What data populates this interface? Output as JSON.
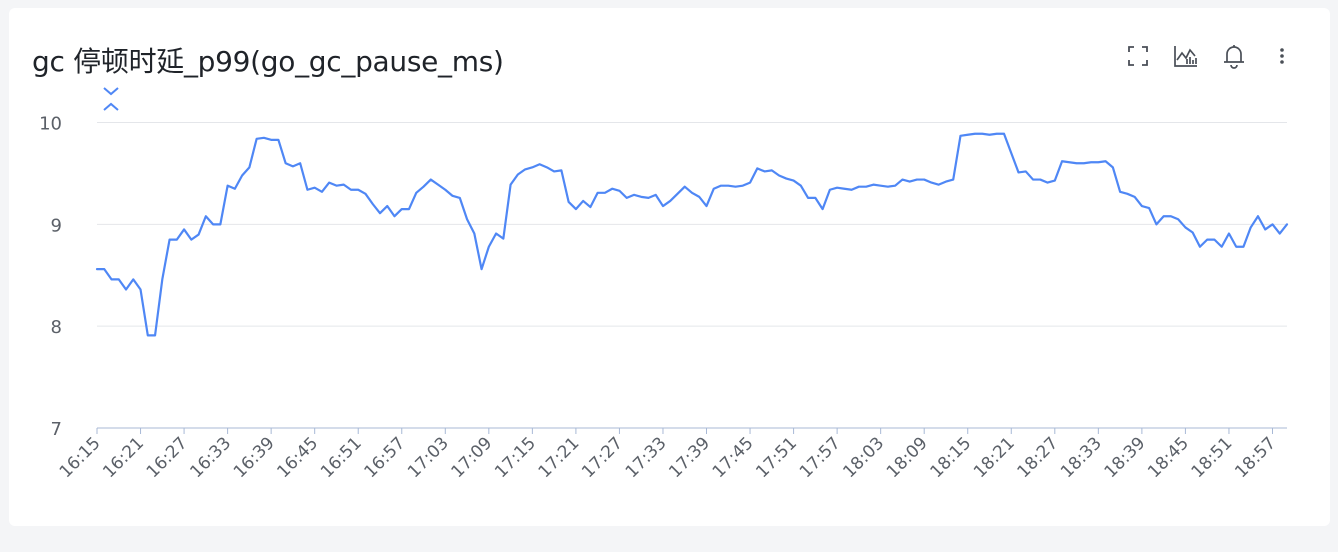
{
  "panel": {
    "title": "gc 停顿时延_p99(go_gc_pause_ms)",
    "toolbar": [
      {
        "name": "fullscreen-icon"
      },
      {
        "name": "chart-type-icon"
      },
      {
        "name": "alert-bell-icon"
      },
      {
        "name": "more-menu-icon"
      }
    ]
  },
  "colors": {
    "line": "#4f87f5",
    "grid": "#e4e6ea",
    "axis": "#a8b9d6"
  },
  "chart_data": {
    "type": "line",
    "title": "",
    "xlabel": "",
    "ylabel": "",
    "ylim": [
      7,
      10.3
    ],
    "yticks": [
      "7",
      "8",
      "9",
      "10"
    ],
    "grid": true,
    "legend": "none",
    "x_tick_labels": [
      "16:15",
      "16:21",
      "16:27",
      "16:33",
      "16:39",
      "16:45",
      "16:51",
      "16:57",
      "17:03",
      "17:09",
      "17:15",
      "17:21",
      "17:27",
      "17:33",
      "17:39",
      "17:45",
      "17:51",
      "17:57",
      "18:03",
      "18:09",
      "18:15",
      "18:21",
      "18:27",
      "18:33",
      "18:39",
      "18:45",
      "18:51",
      "18:57"
    ],
    "x": [
      "16:15",
      "16:16",
      "16:17",
      "16:18",
      "16:19",
      "16:20",
      "16:21",
      "16:22",
      "16:23",
      "16:24",
      "16:25",
      "16:26",
      "16:27",
      "16:28",
      "16:29",
      "16:30",
      "16:31",
      "16:32",
      "16:33",
      "16:34",
      "16:35",
      "16:36",
      "16:37",
      "16:38",
      "16:39",
      "16:40",
      "16:41",
      "16:42",
      "16:43",
      "16:44",
      "16:45",
      "16:46",
      "16:47",
      "16:48",
      "16:49",
      "16:50",
      "16:51",
      "16:52",
      "16:53",
      "16:54",
      "16:55",
      "16:56",
      "16:57",
      "16:58",
      "16:59",
      "17:00",
      "17:01",
      "17:02",
      "17:03",
      "17:04",
      "17:05",
      "17:06",
      "17:07",
      "17:08",
      "17:09",
      "17:10",
      "17:11",
      "17:12",
      "17:13",
      "17:14",
      "17:15",
      "17:16",
      "17:17",
      "17:18",
      "17:19",
      "17:20",
      "17:21",
      "17:22",
      "17:23",
      "17:24",
      "17:25",
      "17:26",
      "17:27",
      "17:28",
      "17:29",
      "17:30",
      "17:31",
      "17:32",
      "17:33",
      "17:34",
      "17:35",
      "17:36",
      "17:37",
      "17:38",
      "17:39",
      "17:40",
      "17:41",
      "17:42",
      "17:43",
      "17:44",
      "17:45",
      "17:46",
      "17:47",
      "17:48",
      "17:49",
      "17:50",
      "17:51",
      "17:52",
      "17:53",
      "17:54",
      "17:55",
      "17:56",
      "17:57",
      "17:58",
      "17:59",
      "18:00",
      "18:01",
      "18:02",
      "18:03",
      "18:04",
      "18:05",
      "18:06",
      "18:07",
      "18:08",
      "18:09",
      "18:10",
      "18:11",
      "18:12",
      "18:13",
      "18:14",
      "18:15",
      "18:16",
      "18:17",
      "18:18",
      "18:19",
      "18:20",
      "18:21",
      "18:22",
      "18:23",
      "18:24",
      "18:25",
      "18:26",
      "18:27",
      "18:28",
      "18:29",
      "18:30",
      "18:31",
      "18:32",
      "18:33",
      "18:34",
      "18:35",
      "18:36",
      "18:37",
      "18:38",
      "18:39",
      "18:40",
      "18:41",
      "18:42",
      "18:43",
      "18:44",
      "18:45",
      "18:46",
      "18:47",
      "18:48",
      "18:49",
      "18:50",
      "18:51",
      "18:52",
      "18:53",
      "18:54",
      "18:55",
      "18:56",
      "18:57",
      "18:58",
      "18:59"
    ],
    "series": [
      {
        "values": [
          8.56,
          8.56,
          8.46,
          8.46,
          8.36,
          8.46,
          8.36,
          7.91,
          7.91,
          8.46,
          8.85,
          8.85,
          8.95,
          8.85,
          8.9,
          9.08,
          9.0,
          9.0,
          9.38,
          9.35,
          9.48,
          9.56,
          9.84,
          9.85,
          9.83,
          9.83,
          9.6,
          9.57,
          9.6,
          9.34,
          9.36,
          9.32,
          9.41,
          9.38,
          9.39,
          9.34,
          9.34,
          9.3,
          9.2,
          9.11,
          9.18,
          9.08,
          9.15,
          9.15,
          9.31,
          9.37,
          9.44,
          9.39,
          9.34,
          9.28,
          9.26,
          9.05,
          8.91,
          8.56,
          8.78,
          8.91,
          8.86,
          9.39,
          9.49,
          9.54,
          9.56,
          9.59,
          9.56,
          9.52,
          9.53,
          9.22,
          9.15,
          9.23,
          9.17,
          9.31,
          9.31,
          9.35,
          9.33,
          9.26,
          9.29,
          9.27,
          9.26,
          9.29,
          9.18,
          9.23,
          9.3,
          9.37,
          9.31,
          9.27,
          9.18,
          9.35,
          9.38,
          9.38,
          9.37,
          9.38,
          9.41,
          9.55,
          9.52,
          9.53,
          9.48,
          9.45,
          9.43,
          9.38,
          9.26,
          9.26,
          9.15,
          9.34,
          9.36,
          9.35,
          9.34,
          9.37,
          9.37,
          9.39,
          9.38,
          9.37,
          9.38,
          9.44,
          9.42,
          9.44,
          9.44,
          9.41,
          9.39,
          9.42,
          9.44,
          9.87,
          9.88,
          9.89,
          9.89,
          9.88,
          9.89,
          9.89,
          9.7,
          9.51,
          9.52,
          9.44,
          9.44,
          9.41,
          9.43,
          9.62,
          9.61,
          9.6,
          9.6,
          9.61,
          9.61,
          9.62,
          9.56,
          9.32,
          9.3,
          9.27,
          9.18,
          9.16,
          9.0,
          9.08,
          9.08,
          9.05,
          8.97,
          8.92,
          8.78,
          8.85,
          8.85,
          8.78,
          8.91,
          8.78,
          8.78,
          8.97,
          9.08,
          8.95,
          9.0,
          8.91,
          9.0
        ]
      }
    ]
  }
}
